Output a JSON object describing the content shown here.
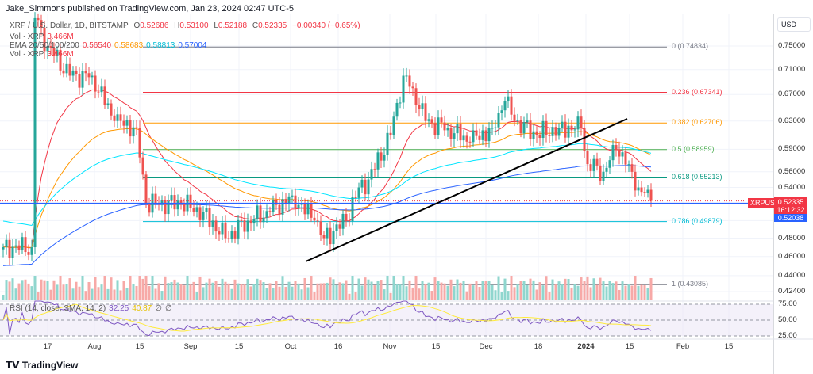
{
  "header": {
    "published": "Jake_Simmons published on TradingView.com, Jan 23, 2024 02:47 UTC-5"
  },
  "legend": {
    "symbol": "XRP / U.S. Dollar, 1D, BITSTAMP",
    "o_label": "O",
    "o": "0.52686",
    "h_label": "H",
    "h": "0.53100",
    "l_label": "L",
    "l": "0.52188",
    "c_label": "C",
    "c": "0.52335",
    "change": "−0.00340 (−0.65%)",
    "vol_label": "Vol · XRP",
    "vol": "3.466M",
    "ema_label": "EMA 20/50/100/200",
    "ema20": "0.56540",
    "ema50": "0.58683",
    "ema100": "0.58813",
    "ema200": "0.57004",
    "vol2_label": "Vol · XRP",
    "vol2": "3.466M"
  },
  "rsi": {
    "label": "RSI (14, close, SMA, 14, 2)",
    "value": "32.25",
    "sma": "40.87",
    "flag1": "∅",
    "flag2": "∅"
  },
  "price_axis": {
    "unit": "USD",
    "ticks": [
      "0.75000",
      "0.71000",
      "0.67000",
      "0.63000",
      "0.59000",
      "0.56000",
      "0.54000",
      "0.48000",
      "0.46000",
      "0.44000",
      "0.42400"
    ],
    "rsi_ticks": [
      "75.00",
      "50.00",
      "25.00"
    ]
  },
  "time_axis": [
    "17",
    "Aug",
    "15",
    "Sep",
    "15",
    "Oct",
    "16",
    "Nov",
    "15",
    "Dec",
    "18",
    "2024",
    "15",
    "Feb",
    "15"
  ],
  "tags": {
    "symbol": "XRPUSD",
    "price": "0.52335",
    "countdown": "16:12:32",
    "hline": "0.52038"
  },
  "fib": [
    {
      "label": "0 (0.74834)",
      "level": 0.74834,
      "color": "#787b86"
    },
    {
      "label": "0.236 (0.67341)",
      "level": 0.67341,
      "color": "#f23645"
    },
    {
      "label": "0.382 (0.62706)",
      "level": 0.62706,
      "color": "#ff9800"
    },
    {
      "label": "0.5 (0.58959)",
      "level": 0.58959,
      "color": "#4caf50"
    },
    {
      "label": "0.618 (0.55213)",
      "level": 0.55213,
      "color": "#089981"
    },
    {
      "label": "0.786 (0.49879)",
      "level": 0.49879,
      "color": "#00bcd4"
    },
    {
      "label": "1 (0.43085)",
      "level": 0.43085,
      "color": "#787b86"
    }
  ],
  "colors": {
    "up": "#26a69a",
    "down": "#ef5350",
    "ema20": "#f23645",
    "ema50": "#ff9800",
    "ema100": "#00e5ff",
    "ema200": "#2962ff",
    "rsi": "#7e57c2",
    "rsi_sma": "#ffeb3b"
  },
  "chart_data": {
    "type": "candlestick",
    "scale": "log",
    "ylim": [
      0.42,
      0.77
    ],
    "series": [
      {
        "date": "2023-07-03",
        "close": 0.47
      },
      {
        "date": "2023-07-12",
        "close": 0.47
      },
      {
        "date": "2023-07-13",
        "close": 0.8
      },
      {
        "date": "2023-07-17",
        "close": 0.75
      },
      {
        "date": "2023-07-24",
        "close": 0.7
      },
      {
        "date": "2023-07-31",
        "close": 0.7
      },
      {
        "date": "2023-08-07",
        "close": 0.63
      },
      {
        "date": "2023-08-14",
        "close": 0.62
      },
      {
        "date": "2023-08-17",
        "close": 0.52
      },
      {
        "date": "2023-08-21",
        "close": 0.52
      },
      {
        "date": "2023-08-28",
        "close": 0.52
      },
      {
        "date": "2023-09-04",
        "close": 0.51
      },
      {
        "date": "2023-09-11",
        "close": 0.48
      },
      {
        "date": "2023-09-18",
        "close": 0.5
      },
      {
        "date": "2023-09-25",
        "close": 0.51
      },
      {
        "date": "2023-10-02",
        "close": 0.53
      },
      {
        "date": "2023-10-09",
        "close": 0.5
      },
      {
        "date": "2023-10-12",
        "close": 0.48
      },
      {
        "date": "2023-10-19",
        "close": 0.5
      },
      {
        "date": "2023-10-23",
        "close": 0.54
      },
      {
        "date": "2023-10-26",
        "close": 0.55
      },
      {
        "date": "2023-11-02",
        "close": 0.61
      },
      {
        "date": "2023-11-06",
        "close": 0.7
      },
      {
        "date": "2023-11-09",
        "close": 0.68
      },
      {
        "date": "2023-11-13",
        "close": 0.63
      },
      {
        "date": "2023-11-20",
        "close": 0.62
      },
      {
        "date": "2023-11-27",
        "close": 0.6
      },
      {
        "date": "2023-12-04",
        "close": 0.62
      },
      {
        "date": "2023-12-08",
        "close": 0.66
      },
      {
        "date": "2023-12-11",
        "close": 0.63
      },
      {
        "date": "2023-12-18",
        "close": 0.61
      },
      {
        "date": "2023-12-25",
        "close": 0.62
      },
      {
        "date": "2024-01-01",
        "close": 0.62
      },
      {
        "date": "2024-01-03",
        "close": 0.57
      },
      {
        "date": "2024-01-08",
        "close": 0.56
      },
      {
        "date": "2024-01-12",
        "close": 0.59
      },
      {
        "date": "2024-01-16",
        "close": 0.57
      },
      {
        "date": "2024-01-19",
        "close": 0.54
      },
      {
        "date": "2024-01-23",
        "close": 0.52335
      }
    ]
  }
}
